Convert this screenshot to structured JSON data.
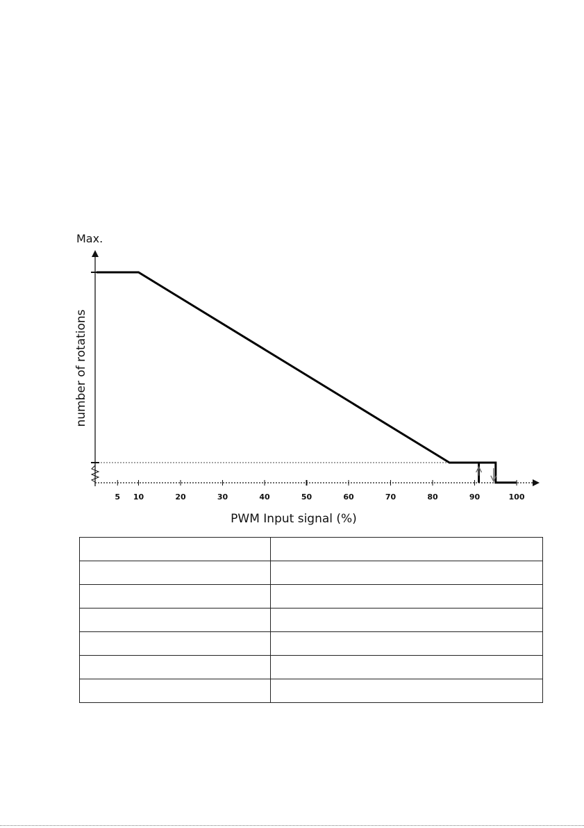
{
  "chart_data": {
    "type": "line",
    "ylabel_top": "Max.",
    "ylabel": "number of rotations",
    "xlabel": "PWM Input signal (%)",
    "xlim": [
      0,
      100
    ],
    "x_ticks": [
      5,
      10,
      20,
      30,
      40,
      50,
      60,
      70,
      80,
      90,
      100
    ],
    "series": [
      {
        "x": [
          0,
          10,
          84,
          95,
          95,
          100
        ],
        "y": [
          1,
          1,
          0,
          0,
          -0.105,
          -0.105
        ]
      }
    ],
    "hysteresis": {
      "x": [
        91,
        95
      ],
      "arrows": [
        "up",
        "down"
      ]
    },
    "reference_line_y": 0,
    "grid": false
  },
  "table": {
    "rows": 7,
    "cols": 2
  }
}
